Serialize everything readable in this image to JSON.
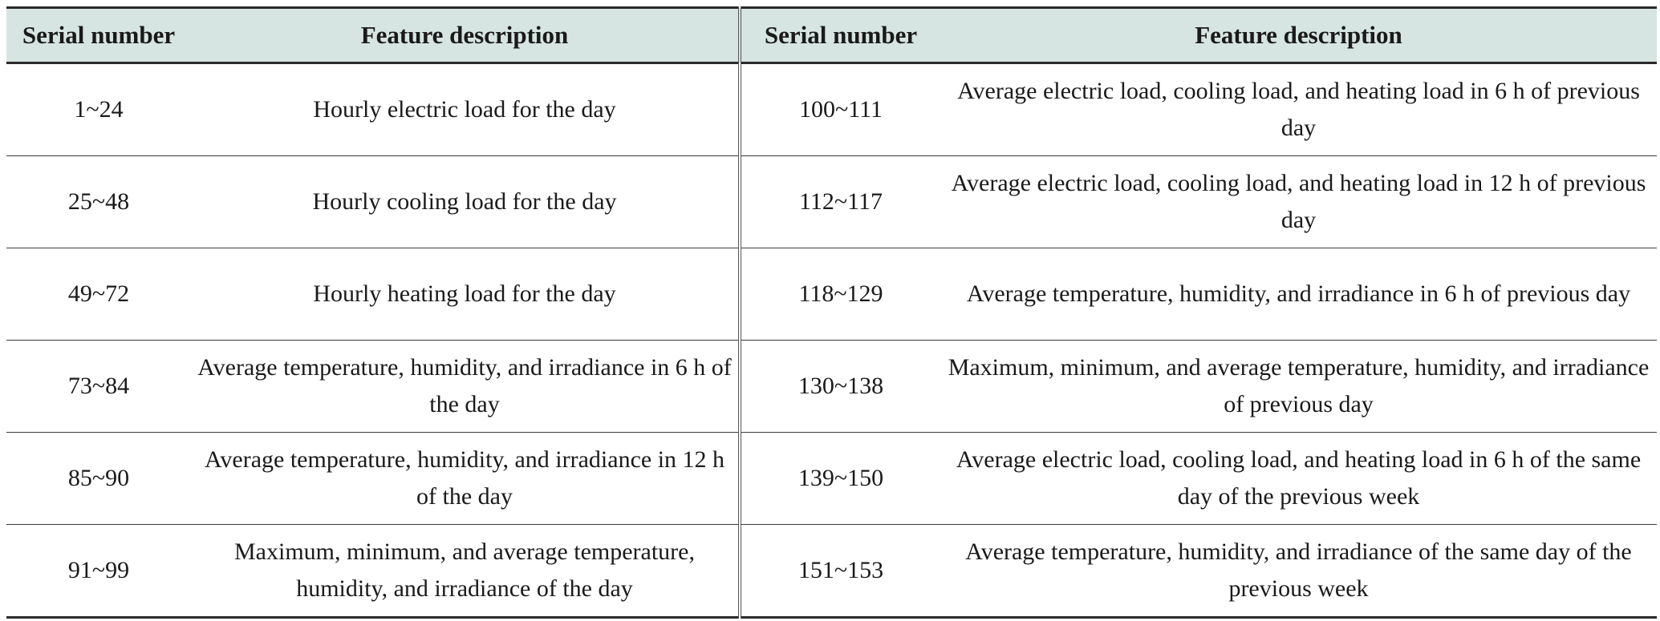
{
  "table": {
    "headers": [
      "Serial number",
      "Feature description",
      "Serial number",
      "Feature description"
    ],
    "rows": [
      {
        "left_serial": "1~24",
        "left_desc": "Hourly electric load for the day",
        "right_serial": "100~111",
        "right_desc": "Average electric load, cooling load, and heating load in 6 h of previous day"
      },
      {
        "left_serial": "25~48",
        "left_desc": "Hourly cooling load for the day",
        "right_serial": "112~117",
        "right_desc": "Average electric load, cooling load, and heating load in 12 h of previous day"
      },
      {
        "left_serial": "49~72",
        "left_desc": "Hourly heating load for the day",
        "right_serial": "118~129",
        "right_desc": "Average temperature, humidity, and irradiance in 6 h of previous day"
      },
      {
        "left_serial": "73~84",
        "left_desc": "Average temperature, humidity, and irradiance in 6 h of the day",
        "right_serial": "130~138",
        "right_desc": "Maximum, minimum, and average temperature, humidity, and irradiance of previous day"
      },
      {
        "left_serial": "85~90",
        "left_desc": "Average temperature, humidity, and irradiance in 12 h of the day",
        "right_serial": "139~150",
        "right_desc": "Average electric load, cooling load, and heating load in 6 h of the same day of the previous week"
      },
      {
        "left_serial": "91~99",
        "left_desc": "Maximum, minimum, and average temperature, humidity, and irradiance of the day",
        "right_serial": "151~153",
        "right_desc": "Average temperature, humidity, and irradiance of the same day of the previous week"
      }
    ]
  }
}
